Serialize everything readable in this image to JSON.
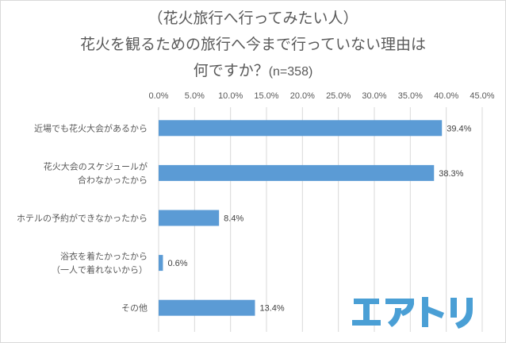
{
  "chart_data": {
    "type": "bar",
    "orientation": "horizontal",
    "title_lines": [
      "（花火旅行へ行ってみたい人）",
      "花火を観るための旅行へ今まで行っていない理由は",
      "何ですか？"
    ],
    "sample_size_label": "(n=358)",
    "categories": [
      [
        "近場でも花火大会があるから"
      ],
      [
        "花火大会のスケジュールが",
        "合わなかったから"
      ],
      [
        "ホテルの予約ができなかったから"
      ],
      [
        "浴衣を着たかったから",
        "（一人で着れないから）"
      ],
      [
        "その他"
      ]
    ],
    "values": [
      39.4,
      38.3,
      8.4,
      0.6,
      13.4
    ],
    "data_labels": [
      "39.4%",
      "38.3%",
      "8.4%",
      "0.6%",
      "13.4%"
    ],
    "xlim": [
      0,
      45
    ],
    "x_ticks": [
      0,
      5,
      10,
      15,
      20,
      25,
      30,
      35,
      40,
      45
    ],
    "x_tick_labels": [
      "0.0%",
      "5.0%",
      "10.0%",
      "15.0%",
      "20.0%",
      "25.0%",
      "30.0%",
      "35.0%",
      "40.0%",
      "45.0%"
    ],
    "x_axis_position": "top",
    "grid": true,
    "legend": "none",
    "bar_color": "#5b9bd5",
    "xlabel": "",
    "ylabel": ""
  },
  "logo": {
    "text": "エアトリ",
    "color": "#4a9fd5"
  }
}
